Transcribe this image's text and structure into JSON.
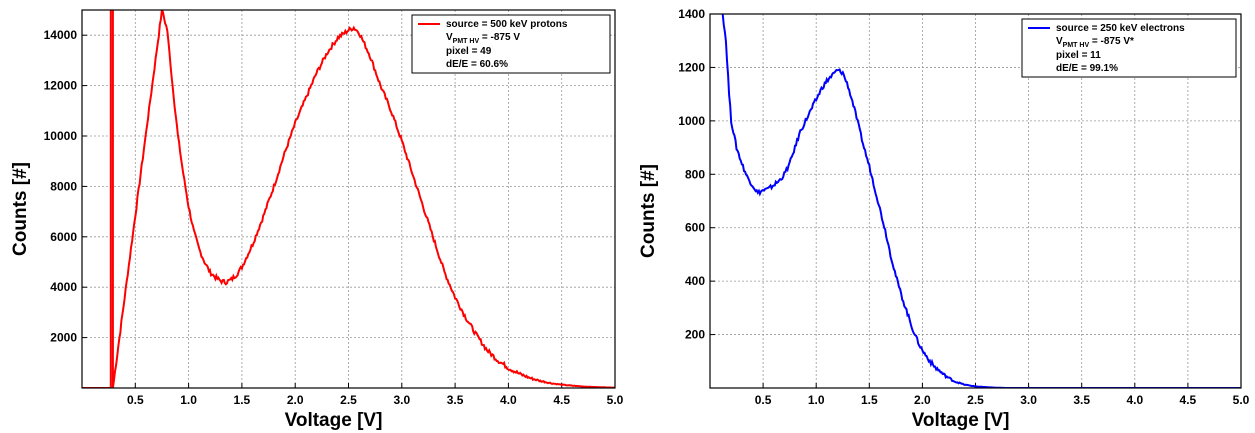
{
  "chart_data": [
    {
      "type": "line",
      "xlabel": "Voltage [V]",
      "ylabel": "Counts [#]",
      "xlim": [
        0,
        5.0
      ],
      "ylim": [
        0,
        15000
      ],
      "xticks": [
        "0.5",
        "1.0",
        "1.5",
        "2.0",
        "2.5",
        "3.0",
        "3.5",
        "4.0",
        "4.5",
        "5.0"
      ],
      "yticks": [
        "2000",
        "4000",
        "6000",
        "8000",
        "10000",
        "12000",
        "14000"
      ],
      "grid": true,
      "legend_position": "top-right",
      "legend": {
        "line1": "source = 500 keV protons",
        "line2_main": "V",
        "line2_sub": "PMT HV",
        "line2_rest": " = -875 V",
        "line3": "pixel = 49",
        "line4": "dE/E = 60.6%"
      },
      "series": [
        {
          "color": "#ff0000",
          "x": [
            0.0,
            0.27,
            0.27,
            0.28,
            0.29,
            0.29,
            0.75,
            0.8,
            0.85,
            0.9,
            0.95,
            1.0,
            1.05,
            1.1,
            1.15,
            1.2,
            1.25,
            1.3,
            1.35,
            1.4,
            1.45,
            1.5,
            1.6,
            1.7,
            1.8,
            1.9,
            2.0,
            2.1,
            2.2,
            2.3,
            2.4,
            2.5,
            2.55,
            2.6,
            2.7,
            2.8,
            2.9,
            3.0,
            3.1,
            3.2,
            3.3,
            3.4,
            3.5,
            3.6,
            3.7,
            3.8,
            3.9,
            4.0,
            4.1,
            4.2,
            4.3,
            4.4,
            4.5,
            4.6,
            4.7,
            4.8,
            4.9,
            5.0
          ],
          "y": [
            0,
            0,
            15000,
            15000,
            15000,
            0,
            15000,
            14200,
            12000,
            10000,
            8500,
            7200,
            6200,
            5500,
            5000,
            4600,
            4400,
            4250,
            4200,
            4300,
            4500,
            4800,
            5700,
            6800,
            8000,
            9300,
            10500,
            11500,
            12500,
            13300,
            13900,
            14200,
            14300,
            14100,
            13200,
            12000,
            11000,
            9800,
            8500,
            7200,
            5900,
            4600,
            3600,
            2800,
            2100,
            1500,
            1100,
            800,
            570,
            400,
            280,
            190,
            130,
            90,
            60,
            40,
            25,
            15
          ]
        }
      ]
    },
    {
      "type": "line",
      "xlabel": "Voltage [V]",
      "ylabel": "Counts [#]",
      "xlim": [
        0,
        5.0
      ],
      "ylim": [
        0,
        1400
      ],
      "xticks": [
        "0.5",
        "1.0",
        "1.5",
        "2.0",
        "2.5",
        "3.0",
        "3.5",
        "4.0",
        "4.5",
        "5.0"
      ],
      "yticks": [
        "200",
        "400",
        "600",
        "800",
        "1000",
        "1200",
        "1400"
      ],
      "grid": true,
      "legend_position": "top-right",
      "legend": {
        "line1": "source = 250 keV electrons",
        "line2_main": "V",
        "line2_sub": "PMT HV",
        "line2_rest": " = -875 V*",
        "line3": "pixel = 11",
        "line4": "dE/E = 99.1%"
      },
      "series": [
        {
          "color": "#0000ff",
          "x": [
            0.12,
            0.15,
            0.18,
            0.2,
            0.25,
            0.3,
            0.35,
            0.4,
            0.45,
            0.5,
            0.55,
            0.6,
            0.65,
            0.7,
            0.75,
            0.8,
            0.85,
            0.9,
            0.95,
            1.0,
            1.05,
            1.1,
            1.15,
            1.2,
            1.25,
            1.3,
            1.35,
            1.4,
            1.45,
            1.5,
            1.55,
            1.6,
            1.65,
            1.7,
            1.75,
            1.8,
            1.85,
            1.9,
            1.95,
            2.0,
            2.1,
            2.2,
            2.3,
            2.4,
            2.5,
            2.6,
            2.7,
            2.8,
            3.0,
            3.5,
            4.0,
            4.5,
            5.0
          ],
          "y": [
            1400,
            1300,
            1100,
            1000,
            900,
            840,
            790,
            760,
            730,
            740,
            745,
            760,
            775,
            800,
            840,
            900,
            960,
            1000,
            1040,
            1080,
            1120,
            1150,
            1170,
            1190,
            1180,
            1130,
            1060,
            980,
            900,
            830,
            750,
            670,
            590,
            500,
            420,
            350,
            290,
            230,
            180,
            140,
            85,
            50,
            25,
            12,
            6,
            3,
            1,
            0,
            0,
            0,
            0,
            0,
            0
          ]
        }
      ]
    }
  ]
}
